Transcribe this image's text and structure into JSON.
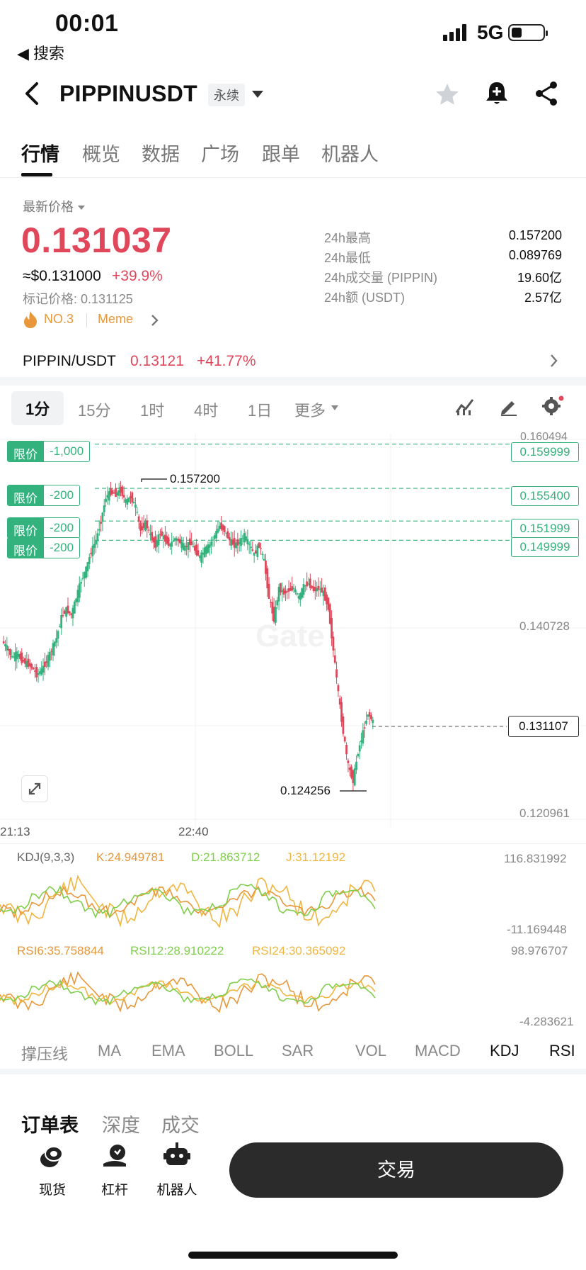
{
  "status_bar": {
    "time": "00:01",
    "back_app": "◀ 搜索",
    "network": "5G"
  },
  "header": {
    "pair": "PIPPINUSDT",
    "contract_type": "永续"
  },
  "tabs": [
    "行情",
    "概览",
    "数据",
    "广场",
    "跟单",
    "机器人"
  ],
  "price": {
    "label": "最新价格",
    "last": "0.131037",
    "usd": "≈$0.131000",
    "change": "+39.9%",
    "mark": "标记价格: 0.131125",
    "rank": "NO.3",
    "tag": "Meme"
  },
  "stats": [
    {
      "label": "24h最高",
      "value": "0.157200"
    },
    {
      "label": "24h最低",
      "value": "0.089769"
    },
    {
      "label": "24h成交量 (PIPPIN)",
      "value": "19.60亿"
    },
    {
      "label": "24h额 (USDT)",
      "value": "2.57亿"
    }
  ],
  "spot": {
    "pair": "PIPPIN/USDT",
    "price": "0.13121",
    "change": "+41.77%"
  },
  "intervals": [
    "1分",
    "15分",
    "1时",
    "4时",
    "1日",
    "更多"
  ],
  "chart": {
    "orders": [
      {
        "type": "限价",
        "qty": "-1,000",
        "price": "0.159999"
      },
      {
        "type": "限价",
        "qty": "-200",
        "price": "0.155400"
      },
      {
        "type": "限价",
        "qty": "-200",
        "price": "0.151999"
      },
      {
        "type": "限价",
        "qty": "-200",
        "price": "0.149999"
      }
    ],
    "axis_top": "0.160494",
    "axis_mid": "0.140728",
    "axis_bottom": "0.120961",
    "high_label": "0.157200",
    "low_label": "0.124256",
    "current": "0.131107",
    "time_labels": [
      "21:13",
      "22:40"
    ]
  },
  "chart_data": {
    "type": "line",
    "title": "",
    "x": [
      0,
      1,
      2,
      3,
      4,
      5,
      6,
      7,
      8,
      9,
      10,
      11,
      12,
      13,
      14,
      15,
      16,
      17,
      18,
      19,
      20,
      21,
      22,
      23,
      24,
      25,
      26,
      27,
      28,
      29,
      30,
      31,
      32,
      33,
      34,
      35,
      36,
      37,
      38,
      39,
      40,
      41,
      42,
      43,
      44,
      45,
      46,
      47,
      48,
      49,
      50,
      51,
      52,
      53,
      54,
      55,
      56,
      57,
      58,
      59,
      60,
      61,
      62,
      63,
      64,
      65,
      66,
      67,
      68,
      69,
      70,
      71,
      72,
      73,
      74,
      75,
      76,
      77,
      78
    ],
    "series": [
      {
        "values": [
          0.1395,
          0.1388,
          0.1378,
          0.1382,
          0.1375,
          0.1372,
          0.1368,
          0.136,
          0.1365,
          0.1374,
          0.1386,
          0.1398,
          0.142,
          0.1428,
          0.1422,
          0.144,
          0.1458,
          0.147,
          0.1488,
          0.15,
          0.152,
          0.1545,
          0.155,
          0.1548,
          0.1552,
          0.154,
          0.1545,
          0.1535,
          0.151,
          0.1518,
          0.1505,
          0.1495,
          0.1508,
          0.15,
          0.1495,
          0.1502,
          0.1498,
          0.1492,
          0.1498,
          0.149,
          0.1482,
          0.149,
          0.1495,
          0.1505,
          0.1515,
          0.151,
          0.15,
          0.1495,
          0.1498,
          0.1505,
          0.1495,
          0.1485,
          0.1495,
          0.1478,
          0.144,
          0.1418,
          0.145,
          0.1445,
          0.1448,
          0.145,
          0.144,
          0.1452,
          0.1455,
          0.1448,
          0.145,
          0.1445,
          0.143,
          0.1385,
          0.134,
          0.13,
          0.1265,
          0.125,
          0.128,
          0.13,
          0.132,
          0.1311,
          0.1311,
          0.1311,
          0.1311
        ]
      }
    ],
    "ylim": [
      0.120961,
      0.160494
    ],
    "ytick_labels": [
      "0.160494",
      "0.140728",
      "0.120961"
    ],
    "xtick_labels": [
      "21:13",
      "22:40"
    ],
    "annotations": [
      "0.157200",
      "0.124256"
    ],
    "grid": true
  },
  "indicators": {
    "kdj": {
      "title": "KDJ(9,3,3)",
      "k": "K:24.949781",
      "d": "D:21.863712",
      "j": "J:31.12192",
      "max": "116.831992",
      "min": "-11.169448"
    },
    "rsi": {
      "r6": "RSI6:35.758844",
      "r12": "RSI12:28.910222",
      "r24": "RSI24:30.365092",
      "max": "98.976707",
      "min": "-4.283621"
    },
    "tabs": [
      "撑压线",
      "MA",
      "EMA",
      "BOLL",
      "SAR",
      "VOL",
      "MACD",
      "KDJ",
      "RSI"
    ]
  },
  "bottom": {
    "tabs": [
      "订单表",
      "深度",
      "成交"
    ],
    "actions": [
      "现货",
      "杠杆",
      "机器人"
    ],
    "trade": "交易"
  },
  "colors": {
    "up": "#34b27d",
    "down": "#e0475b",
    "accent": "#e8973a"
  }
}
